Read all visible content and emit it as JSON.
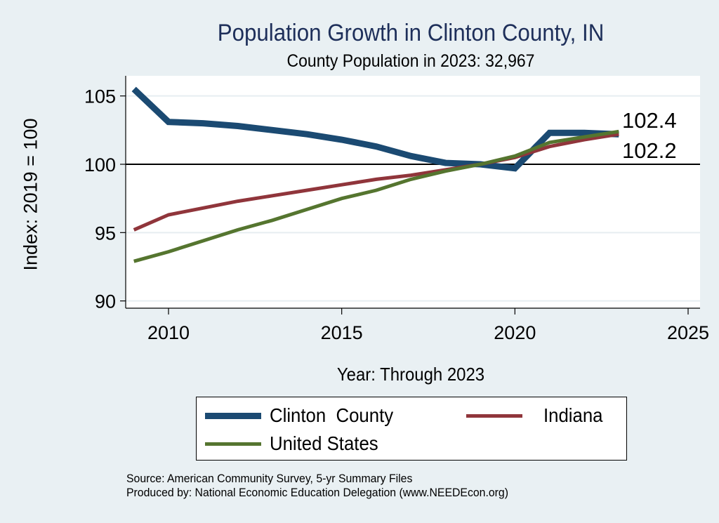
{
  "chart_data": {
    "type": "line",
    "title": "Population Growth in Clinton County, IN",
    "subtitle": "County Population in 2023: 32,967",
    "xlabel": "Year: Through 2023",
    "ylabel": "Index: 2019 = 100",
    "xlim": [
      2009,
      2025
    ],
    "ylim": [
      90,
      105.5
    ],
    "xticks": [
      2010,
      2015,
      2020,
      2025
    ],
    "yticks": [
      90,
      95,
      100,
      105
    ],
    "grid": true,
    "reference_line": 100,
    "x": [
      2009,
      2010,
      2011,
      2012,
      2013,
      2014,
      2015,
      2016,
      2017,
      2018,
      2019,
      2020,
      2021,
      2022,
      2023
    ],
    "series": [
      {
        "name": "Clinton  County",
        "color": "#1b4a72",
        "width": 9,
        "values": [
          105.5,
          103.1,
          103.0,
          102.8,
          102.5,
          102.2,
          101.8,
          101.3,
          100.6,
          100.1,
          100.0,
          99.7,
          102.3,
          102.3,
          102.2
        ]
      },
      {
        "name": "Indiana",
        "color": "#90353b",
        "width": 5,
        "values": [
          95.2,
          96.3,
          96.8,
          97.3,
          97.7,
          98.1,
          98.5,
          98.9,
          99.2,
          99.6,
          100.0,
          100.5,
          101.3,
          101.8,
          102.2
        ]
      },
      {
        "name": "United States",
        "color": "#55752f",
        "width": 5,
        "values": [
          92.9,
          93.6,
          94.4,
          95.2,
          95.9,
          96.7,
          97.5,
          98.1,
          98.9,
          99.5,
          100.0,
          100.6,
          101.6,
          102.0,
          102.4
        ]
      }
    ],
    "annotations": [
      "102.4",
      "102.2"
    ],
    "legend_position": "bottom"
  },
  "source_lines": [
    "Source: American Community Survey, 5-yr Summary Files",
    "Produced by: National Economic Education Delegation (www.NEEDEcon.org)"
  ]
}
